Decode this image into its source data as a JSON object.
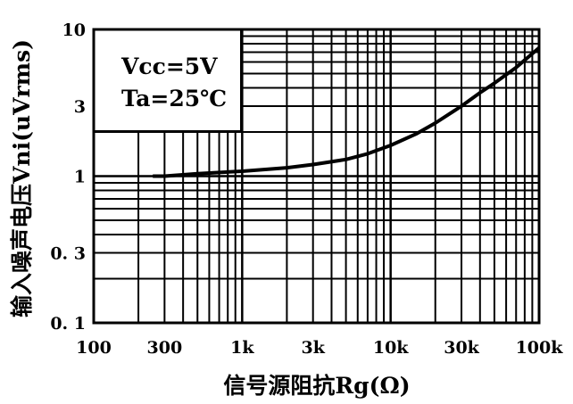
{
  "chart_data": {
    "type": "line",
    "title": "",
    "xlabel": "信号源阻抗Rg(Ω)",
    "ylabel": "输入噪声电压Vni(uVrms)",
    "x_scale": "log",
    "y_scale": "log",
    "xlim": [
      100,
      100000
    ],
    "ylim": [
      0.1,
      10
    ],
    "x_ticks": [
      {
        "value": 100,
        "label": "100"
      },
      {
        "value": 300,
        "label": "300"
      },
      {
        "value": 1000,
        "label": "1k"
      },
      {
        "value": 3000,
        "label": "3k"
      },
      {
        "value": 10000,
        "label": "10k"
      },
      {
        "value": 30000,
        "label": "30k"
      },
      {
        "value": 100000,
        "label": "100k"
      }
    ],
    "y_ticks": [
      {
        "value": 10,
        "label": "10"
      },
      {
        "value": 3,
        "label": "3"
      },
      {
        "value": 1,
        "label": "1"
      },
      {
        "value": 0.3,
        "label": "0. 3"
      },
      {
        "value": 0.1,
        "label": "0. 1"
      }
    ],
    "grid": true,
    "annotations": [
      "Vcc=5V",
      "Ta=25℃"
    ],
    "series": [
      {
        "color": "#000000",
        "x": [
          250,
          300,
          500,
          1000,
          2000,
          3000,
          5000,
          7000,
          10000,
          15000,
          20000,
          30000,
          40000,
          50000,
          70000,
          100000
        ],
        "y": [
          1.0,
          1.0,
          1.04,
          1.08,
          1.14,
          1.2,
          1.3,
          1.42,
          1.62,
          1.95,
          2.3,
          3.0,
          3.7,
          4.3,
          5.5,
          7.5
        ]
      }
    ]
  }
}
